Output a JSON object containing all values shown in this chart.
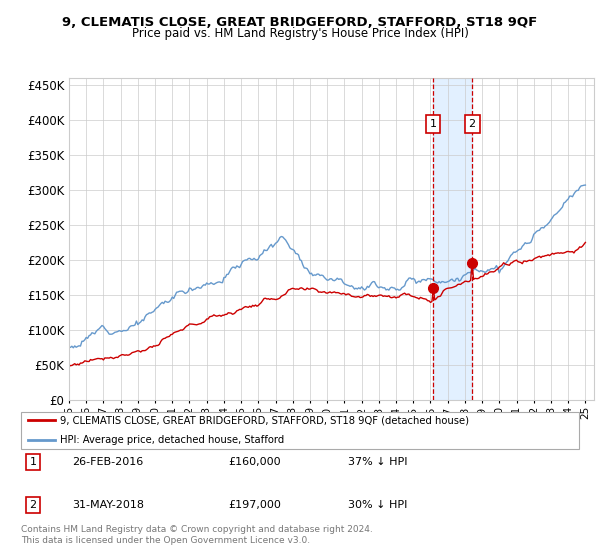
{
  "title": "9, CLEMATIS CLOSE, GREAT BRIDGEFORD, STAFFORD, ST18 9QF",
  "subtitle": "Price paid vs. HM Land Registry's House Price Index (HPI)",
  "legend_label_red": "9, CLEMATIS CLOSE, GREAT BRIDGEFORD, STAFFORD, ST18 9QF (detached house)",
  "legend_label_blue": "HPI: Average price, detached house, Stafford",
  "purchase1_date": "26-FEB-2016",
  "purchase1_price": 160000,
  "purchase1_pct": "37% ↓ HPI",
  "purchase2_date": "31-MAY-2018",
  "purchase2_price": 197000,
  "purchase2_pct": "30% ↓ HPI",
  "footer": "Contains HM Land Registry data © Crown copyright and database right 2024.\nThis data is licensed under the Open Government Licence v3.0.",
  "purchase1_year": 2016.15,
  "purchase2_year": 2018.42,
  "red_color": "#cc0000",
  "blue_color": "#6699cc",
  "highlight_fill": "#ddeeff",
  "grid_color": "#cccccc",
  "hpi_seed": 12,
  "red_seed": 77,
  "hpi_noise_scale": 2000,
  "red_noise_scale": 1200
}
